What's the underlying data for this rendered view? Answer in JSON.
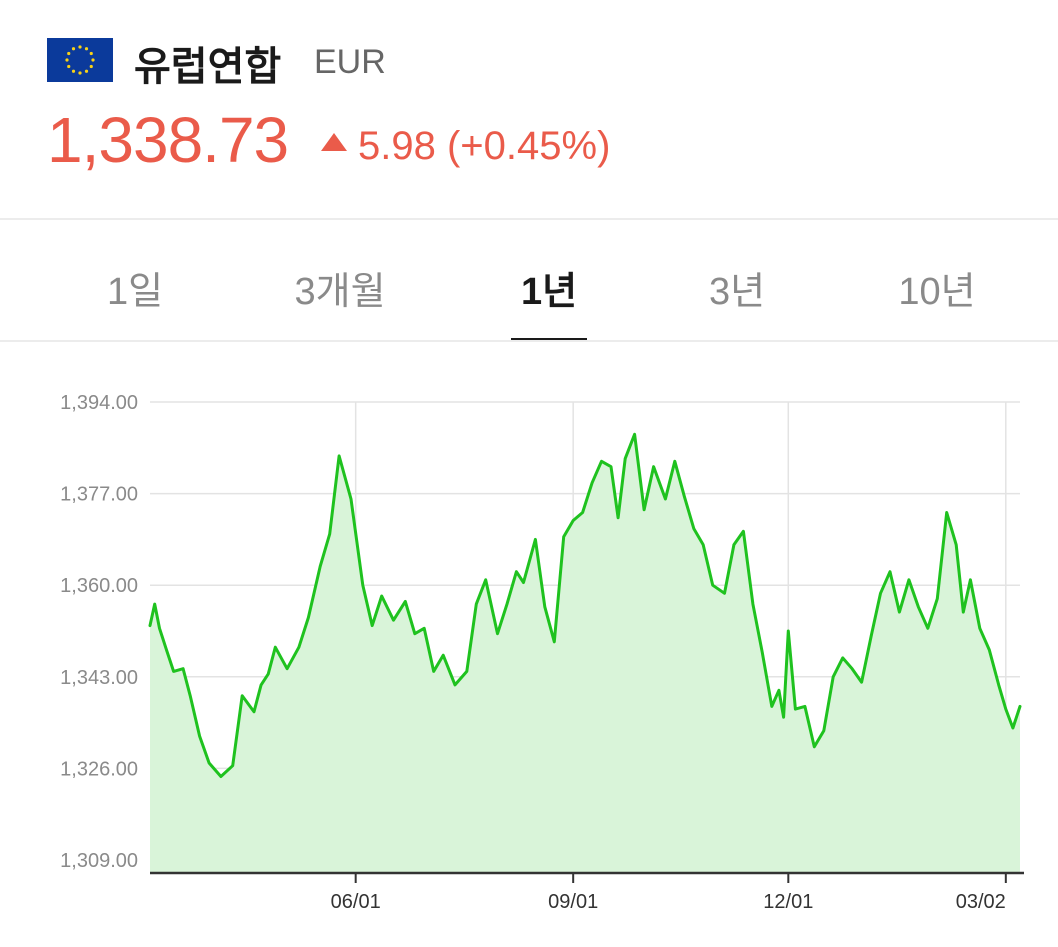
{
  "currency": {
    "name": "유럽연합",
    "code": "EUR",
    "flag_icon": "eu-flag-icon",
    "rate": "1,338.73",
    "change_direction": "up",
    "change_amount": "5.98",
    "change_percent": "(+0.45%)"
  },
  "colors": {
    "up": "#ea5b4a",
    "line": "#1fc21f",
    "fill": "#d9f4d9",
    "grid": "#e3e3e3",
    "axis_label": "#8a8a8a",
    "flag_blue": "#0b3a9b",
    "flag_star": "#f7d117"
  },
  "tabs": [
    {
      "label": "1일",
      "active": false
    },
    {
      "label": "3개월",
      "active": false
    },
    {
      "label": "1년",
      "active": true
    },
    {
      "label": "3년",
      "active": false
    },
    {
      "label": "10년",
      "active": false
    }
  ],
  "chart_data": {
    "type": "line",
    "title": "",
    "xlabel": "",
    "ylabel": "",
    "ylim": [
      1304,
      1398
    ],
    "y_ticks": [
      1394,
      1377,
      1360,
      1343,
      1326,
      1309
    ],
    "y_tick_labels": [
      "1,394.00",
      "1,377.00",
      "1,360.00",
      "1,343.00",
      "1,326.00",
      "1,309.00"
    ],
    "x_tick_labels": [
      "06/01",
      "09/01",
      "12/01",
      "03/02"
    ],
    "x_tick_dates": [
      "2023-06-01",
      "2023-09-01",
      "2023-12-01",
      "2024-03-02"
    ],
    "x_range": [
      "2023-03-06",
      "2024-03-08"
    ],
    "grid": true,
    "area_fill": true,
    "series": [
      {
        "name": "",
        "x": [
          "2023-03-06",
          "2023-03-08",
          "2023-03-10",
          "2023-03-13",
          "2023-03-16",
          "2023-03-20",
          "2023-03-23",
          "2023-03-27",
          "2023-03-31",
          "2023-04-05",
          "2023-04-10",
          "2023-04-14",
          "2023-04-19",
          "2023-04-22",
          "2023-04-25",
          "2023-04-28",
          "2023-05-03",
          "2023-05-08",
          "2023-05-12",
          "2023-05-17",
          "2023-05-21",
          "2023-05-25",
          "2023-05-30",
          "2023-06-04",
          "2023-06-08",
          "2023-06-12",
          "2023-06-17",
          "2023-06-22",
          "2023-06-26",
          "2023-06-30",
          "2023-07-04",
          "2023-07-08",
          "2023-07-13",
          "2023-07-18",
          "2023-07-22",
          "2023-07-26",
          "2023-07-31",
          "2023-08-04",
          "2023-08-08",
          "2023-08-11",
          "2023-08-16",
          "2023-08-20",
          "2023-08-24",
          "2023-08-28",
          "2023-09-01",
          "2023-09-05",
          "2023-09-09",
          "2023-09-13",
          "2023-09-17",
          "2023-09-20",
          "2023-09-23",
          "2023-09-27",
          "2023-10-01",
          "2023-10-05",
          "2023-10-10",
          "2023-10-14",
          "2023-10-18",
          "2023-10-22",
          "2023-10-26",
          "2023-10-30",
          "2023-11-04",
          "2023-11-08",
          "2023-11-12",
          "2023-11-16",
          "2023-11-20",
          "2023-11-24",
          "2023-11-27",
          "2023-11-29",
          "2023-12-01",
          "2023-12-04",
          "2023-12-08",
          "2023-12-12",
          "2023-12-16",
          "2023-12-20",
          "2023-12-24",
          "2023-12-28",
          "2024-01-01",
          "2024-01-05",
          "2024-01-09",
          "2024-01-13",
          "2024-01-17",
          "2024-01-21",
          "2024-01-25",
          "2024-01-29",
          "2024-02-02",
          "2024-02-06",
          "2024-02-10",
          "2024-02-13",
          "2024-02-16",
          "2024-02-20",
          "2024-02-24",
          "2024-02-28",
          "2024-03-02",
          "2024-03-05",
          "2024-03-08"
        ],
        "y": [
          1352.5,
          1356.5,
          1352,
          1348,
          1344,
          1344.5,
          1339.5,
          1332,
          1327,
          1324.5,
          1326.5,
          1339.5,
          1336.5,
          1341.5,
          1343.5,
          1348.5,
          1344.5,
          1348.5,
          1354,
          1363.5,
          1369.5,
          1384,
          1376,
          1360,
          1352.5,
          1358,
          1353.5,
          1357,
          1351,
          1352,
          1344,
          1347,
          1341.5,
          1344,
          1356.5,
          1361,
          1351,
          1356.5,
          1362.5,
          1360.5,
          1368.5,
          1356,
          1349.5,
          1369,
          1372,
          1373.5,
          1379,
          1383,
          1382,
          1372.5,
          1383.5,
          1388,
          1374,
          1382,
          1376,
          1383,
          1376.5,
          1370.5,
          1367.5,
          1360,
          1358.5,
          1367.5,
          1370,
          1356.5,
          1347.5,
          1337.5,
          1340.5,
          1335.5,
          1351.5,
          1337,
          1337.5,
          1330,
          1333,
          1343,
          1346.5,
          1344.5,
          1342,
          1350.5,
          1358.5,
          1362.5,
          1355,
          1361,
          1356,
          1352,
          1357.5,
          1373.5,
          1367.5,
          1355,
          1361,
          1352,
          1348,
          1341.5,
          1337,
          1333.5,
          1337.5
        ]
      }
    ]
  }
}
